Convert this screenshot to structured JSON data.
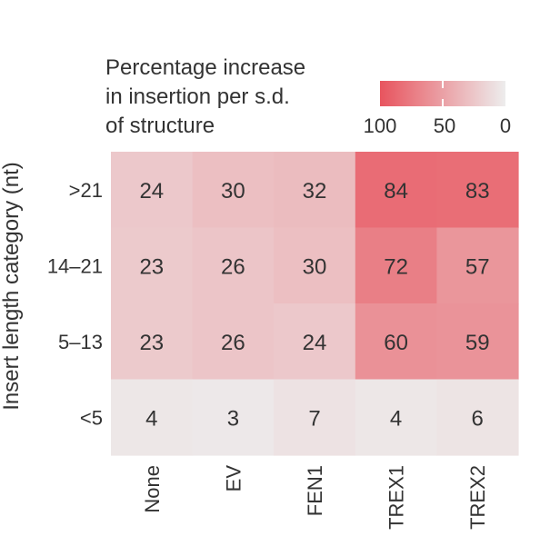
{
  "chart_data": {
    "type": "heatmap",
    "title_lines": [
      "Percentage increase",
      "in insertion per s.d.",
      "of structure"
    ],
    "ylabel": "Insert length category (nt)",
    "xlabel": "",
    "rows": [
      ">21",
      "14–21",
      "5–13",
      "<5"
    ],
    "columns": [
      "None",
      "EV",
      "FEN1",
      "TREX1",
      "TREX2"
    ],
    "values": [
      [
        24,
        30,
        32,
        84,
        83
      ],
      [
        23,
        26,
        30,
        72,
        57
      ],
      [
        23,
        26,
        24,
        60,
        59
      ],
      [
        4,
        3,
        7,
        4,
        6
      ]
    ],
    "colorbar": {
      "ticks": [
        "100",
        "50",
        "0"
      ],
      "range": [
        100,
        0
      ],
      "color_high": "#e8545e",
      "color_low": "#ededed"
    }
  }
}
